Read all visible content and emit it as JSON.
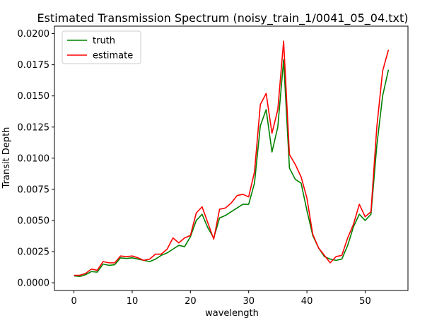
{
  "chart_data": {
    "type": "line",
    "title": "Estimated Transmission Spectrum (noisy_train_1/0041_05_04.txt)",
    "xlabel": "wavelength",
    "ylabel": "Transit Depth",
    "xlim": [
      -3.35,
      57.35
    ],
    "ylim": [
      -0.00062,
      0.0206
    ],
    "xticks": [
      0,
      10,
      20,
      30,
      40,
      50
    ],
    "yticks": [
      0.0,
      0.0025,
      0.005,
      0.0075,
      0.01,
      0.0125,
      0.015,
      0.0175,
      0.02
    ],
    "ytick_labels": [
      "0.0000",
      "0.0025",
      "0.0050",
      "0.0075",
      "0.0100",
      "0.0125",
      "0.0150",
      "0.0175",
      "0.0200"
    ],
    "legend_position": "upper-left",
    "grid": false,
    "series": [
      {
        "name": "truth",
        "color": "#008000",
        "x": [
          0,
          1,
          2,
          3,
          4,
          5,
          6,
          7,
          8,
          9,
          10,
          11,
          12,
          13,
          14,
          15,
          16,
          17,
          18,
          19,
          20,
          21,
          22,
          23,
          24,
          25,
          26,
          27,
          28,
          29,
          30,
          31,
          32,
          33,
          34,
          35,
          36,
          37,
          38,
          39,
          40,
          41,
          42,
          43,
          44,
          45,
          46,
          47,
          48,
          49,
          50,
          51,
          52,
          53,
          54
        ],
        "values": [
          0.00055,
          0.0005,
          0.00065,
          0.0009,
          0.00085,
          0.0015,
          0.0014,
          0.00145,
          0.002,
          0.00195,
          0.002,
          0.0019,
          0.0018,
          0.0017,
          0.0019,
          0.0022,
          0.0024,
          0.0027,
          0.003,
          0.0029,
          0.0037,
          0.005,
          0.0055,
          0.0044,
          0.0036,
          0.0052,
          0.0054,
          0.0057,
          0.006,
          0.0063,
          0.0063,
          0.008,
          0.0126,
          0.0139,
          0.0105,
          0.0125,
          0.0179,
          0.0092,
          0.0083,
          0.008,
          0.0058,
          0.0038,
          0.0028,
          0.0021,
          0.0019,
          0.0018,
          0.0019,
          0.003,
          0.0045,
          0.0055,
          0.005,
          0.0055,
          0.011,
          0.015,
          0.0171
        ]
      },
      {
        "name": "estimate",
        "color": "#ff0000",
        "x": [
          0,
          1,
          2,
          3,
          4,
          5,
          6,
          7,
          8,
          9,
          10,
          11,
          12,
          13,
          14,
          15,
          16,
          17,
          18,
          19,
          20,
          21,
          22,
          23,
          24,
          25,
          26,
          27,
          28,
          29,
          30,
          31,
          32,
          33,
          34,
          35,
          36,
          37,
          38,
          39,
          40,
          41,
          42,
          43,
          44,
          45,
          46,
          47,
          48,
          49,
          50,
          51,
          52,
          53,
          54
        ],
        "values": [
          0.0006,
          0.0006,
          0.00075,
          0.0011,
          0.001,
          0.0017,
          0.0016,
          0.0016,
          0.00215,
          0.0021,
          0.00215,
          0.002,
          0.0018,
          0.0019,
          0.0023,
          0.0023,
          0.0027,
          0.0036,
          0.0032,
          0.0036,
          0.0038,
          0.0056,
          0.0061,
          0.0048,
          0.0035,
          0.0059,
          0.006,
          0.0064,
          0.007,
          0.0071,
          0.0069,
          0.0089,
          0.0143,
          0.0152,
          0.012,
          0.0139,
          0.0194,
          0.0103,
          0.0095,
          0.0085,
          0.0068,
          0.0039,
          0.0028,
          0.0022,
          0.0016,
          0.0021,
          0.0022,
          0.0036,
          0.0047,
          0.0063,
          0.0053,
          0.0057,
          0.0125,
          0.017,
          0.0187
        ]
      }
    ]
  }
}
